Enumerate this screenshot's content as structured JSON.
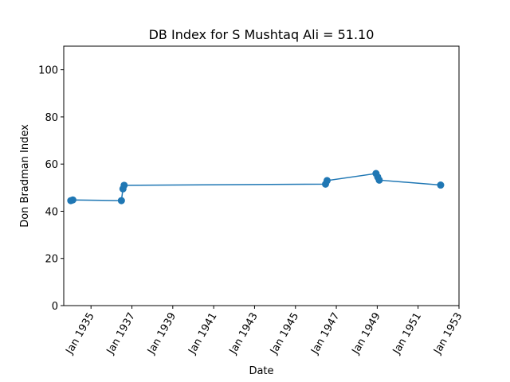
{
  "chart_data": {
    "type": "line",
    "title": "DB Index for S Mushtaq Ali = 51.10",
    "xlabel": "Date",
    "ylabel": "Don Bradman Index",
    "ylim": [
      0,
      110
    ],
    "xlim": [
      "1933-09-01",
      "1953-01-01"
    ],
    "y_ticks": [
      0,
      20,
      40,
      60,
      80,
      100
    ],
    "x_ticks": [
      {
        "date": "1935-01-01",
        "label": "Jan 1935"
      },
      {
        "date": "1937-01-01",
        "label": "Jan 1937"
      },
      {
        "date": "1939-01-01",
        "label": "Jan 1939"
      },
      {
        "date": "1941-01-01",
        "label": "Jan 1941"
      },
      {
        "date": "1943-01-01",
        "label": "Jan 1943"
      },
      {
        "date": "1945-01-01",
        "label": "Jan 1945"
      },
      {
        "date": "1947-01-01",
        "label": "Jan 1947"
      },
      {
        "date": "1949-01-01",
        "label": "Jan 1949"
      },
      {
        "date": "1951-01-01",
        "label": "Jan 1951"
      },
      {
        "date": "1953-01-01",
        "label": "Jan 1953"
      }
    ],
    "grid": false,
    "color": "#1f77b4",
    "series": [
      {
        "points": [
          {
            "x": "1934-01-05",
            "y": 44.5
          },
          {
            "x": "1934-02-10",
            "y": 44.8
          },
          {
            "x": "1936-06-27",
            "y": 44.5
          },
          {
            "x": "1936-07-25",
            "y": 49.5
          },
          {
            "x": "1936-08-15",
            "y": 51.0
          },
          {
            "x": "1946-06-22",
            "y": 51.5
          },
          {
            "x": "1946-07-20",
            "y": 53.0
          },
          {
            "x": "1948-12-10",
            "y": 56.0
          },
          {
            "x": "1949-01-10",
            "y": 54.5
          },
          {
            "x": "1949-02-06",
            "y": 53.2
          },
          {
            "x": "1952-02-08",
            "y": 51.1
          }
        ]
      }
    ]
  }
}
